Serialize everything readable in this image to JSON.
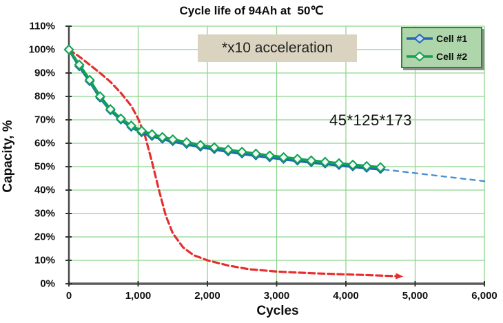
{
  "chart_data": {
    "type": "line",
    "title": "Cycle life of 94Ah at  50℃",
    "xlabel": "Cycles",
    "ylabel": "Capacity, %",
    "xlim": [
      0,
      6000
    ],
    "ylim": [
      0,
      110
    ],
    "grid": true,
    "x_ticks": {
      "values": [
        0,
        1000,
        2000,
        3000,
        4000,
        5000,
        6000
      ],
      "labels": [
        "0",
        "1,000",
        "2,000",
        "3,000",
        "4,000",
        "5,000",
        "6,000"
      ]
    },
    "y_ticks": {
      "values": [
        110,
        100,
        90,
        80,
        70,
        60,
        50,
        40,
        30,
        20,
        10,
        0
      ],
      "labels": [
        "110%",
        "100%",
        "90%",
        "80%",
        "70%",
        "60%",
        "50%",
        "40%",
        "30%",
        "20%",
        "10%",
        "0%"
      ]
    },
    "colors": {
      "grid": "#8ed58e",
      "axis": "#474747",
      "cell1_line": "#2268b3",
      "cell1_marker_fill": "#bdd7ee",
      "cell2_line": "#0fa257",
      "cell2_marker_fill": "#f4f9f0",
      "projection_line": "#4a8fd4",
      "accelerated_line": "#e62e2e",
      "legend_bg": "#aed6aa",
      "legend_border": "#35813a",
      "annotation_bg": "#d9d3bf"
    },
    "legend": {
      "position": "top-right",
      "entries": [
        {
          "label": "Cell #1",
          "line_color": "#2268b3",
          "marker_fill": "#bdd7ee"
        },
        {
          "label": "Cell #2",
          "line_color": "#0fa257",
          "marker_fill": "#f4f9f0"
        }
      ]
    },
    "annotations": [
      {
        "text": "*x10 acceleration"
      },
      {
        "text": "45*125*173"
      }
    ],
    "series": [
      {
        "name": "x10 accelerated trend",
        "style": "dashed",
        "color": "#e62e2e",
        "width": 3.2,
        "dash": "9 5",
        "arrow_end": true,
        "points": [
          [
            0,
            100
          ],
          [
            150,
            97
          ],
          [
            300,
            93.5
          ],
          [
            450,
            90
          ],
          [
            600,
            86.2
          ],
          [
            750,
            81.5
          ],
          [
            900,
            76
          ],
          [
            1000,
            70.5
          ],
          [
            1100,
            63
          ],
          [
            1200,
            52
          ],
          [
            1300,
            40
          ],
          [
            1400,
            29
          ],
          [
            1500,
            21.5
          ],
          [
            1650,
            15.5
          ],
          [
            1800,
            12.2
          ],
          [
            2000,
            10
          ],
          [
            2300,
            7.8
          ],
          [
            2600,
            6.2
          ],
          [
            3000,
            5.2
          ],
          [
            3500,
            4.5
          ],
          [
            4000,
            4
          ],
          [
            4400,
            3.6
          ],
          [
            4750,
            3.2
          ]
        ]
      },
      {
        "name": "Cell #1 projection",
        "style": "dashed",
        "color": "#4a8fd4",
        "width": 2.4,
        "dash": "7 7",
        "arrow_end": false,
        "points": [
          [
            4550,
            48.8
          ],
          [
            6000,
            43.8
          ]
        ]
      },
      {
        "name": "Cell #1",
        "style": "solid",
        "color": "#2268b3",
        "width": 4,
        "marker": "diamond",
        "marker_fill": "#bdd7ee",
        "marker_size": 5.5,
        "points": [
          [
            0,
            100
          ],
          [
            150,
            92.8
          ],
          [
            300,
            86.4
          ],
          [
            450,
            79.4
          ],
          [
            600,
            74
          ],
          [
            750,
            70
          ],
          [
            900,
            66.9
          ],
          [
            1050,
            64.6
          ],
          [
            1200,
            63
          ],
          [
            1350,
            61.8
          ],
          [
            1500,
            60.8
          ],
          [
            1700,
            59.6
          ],
          [
            1900,
            58.4
          ],
          [
            2100,
            57.4
          ],
          [
            2300,
            56.4
          ],
          [
            2500,
            55.5
          ],
          [
            2700,
            54.7
          ],
          [
            2900,
            53.9
          ],
          [
            3100,
            53.2
          ],
          [
            3300,
            52.5
          ],
          [
            3500,
            51.8
          ],
          [
            3700,
            51.2
          ],
          [
            3900,
            50.6
          ],
          [
            4100,
            50
          ],
          [
            4300,
            49.4
          ],
          [
            4500,
            48.9
          ]
        ]
      },
      {
        "name": "Cell #2",
        "style": "solid",
        "color": "#0fa257",
        "width": 4,
        "marker": "diamond",
        "marker_fill": "#f4f9f0",
        "marker_size": 6.2,
        "points": [
          [
            0,
            100
          ],
          [
            150,
            93.5
          ],
          [
            300,
            87
          ],
          [
            450,
            80
          ],
          [
            600,
            74.5
          ],
          [
            750,
            70.5
          ],
          [
            900,
            67.5
          ],
          [
            1050,
            65.3
          ],
          [
            1200,
            63.8
          ],
          [
            1350,
            62.6
          ],
          [
            1500,
            61.6
          ],
          [
            1700,
            60.4
          ],
          [
            1900,
            59.2
          ],
          [
            2100,
            58.2
          ],
          [
            2300,
            57.2
          ],
          [
            2500,
            56.3
          ],
          [
            2700,
            55.5
          ],
          [
            2900,
            54.7
          ],
          [
            3100,
            54
          ],
          [
            3300,
            53.3
          ],
          [
            3500,
            52.6
          ],
          [
            3700,
            52
          ],
          [
            3900,
            51.4
          ],
          [
            4100,
            50.8
          ],
          [
            4300,
            50.2
          ],
          [
            4500,
            49.7
          ]
        ]
      }
    ]
  }
}
